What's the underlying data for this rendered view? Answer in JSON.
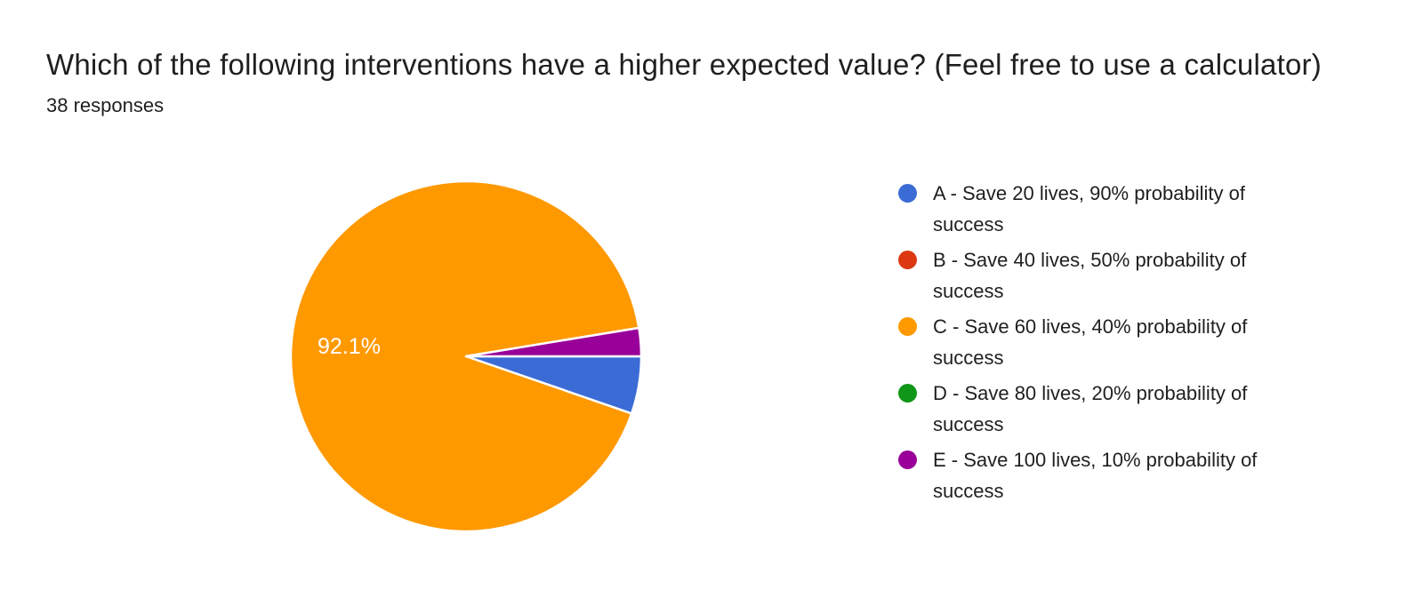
{
  "header": {
    "title": "Which of the following interventions have a higher expected value? (Feel free to use a calculator)",
    "subtitle": "38 responses"
  },
  "chart_data": {
    "type": "pie",
    "title": "Which of the following interventions have a higher expected value? (Feel free to use a calculator)",
    "subtitle": "38 responses",
    "total_responses": 38,
    "legend_position": "right",
    "start_angle": "3-oclock-clockwise",
    "slice_border_color": "#ffffff",
    "slices": [
      {
        "key": "A",
        "label": "A - Save 20 lives, 90% probability of success",
        "color": "#3b6cd6",
        "percent": 5.3,
        "center_label": ""
      },
      {
        "key": "B",
        "label": "B - Save 40 lives, 50% probability of success",
        "color": "#dc3912",
        "percent": 0,
        "center_label": ""
      },
      {
        "key": "C",
        "label": "C - Save 60 lives, 40% probability of success",
        "color": "#ff9900",
        "percent": 92.1,
        "center_label": "92.1%"
      },
      {
        "key": "D",
        "label": "D - Save 80 lives, 20% probability of success",
        "color": "#109618",
        "percent": 0,
        "center_label": ""
      },
      {
        "key": "E",
        "label": "E - Save 100 lives, 10% probability of success",
        "color": "#990099",
        "percent": 2.6,
        "center_label": ""
      }
    ]
  }
}
